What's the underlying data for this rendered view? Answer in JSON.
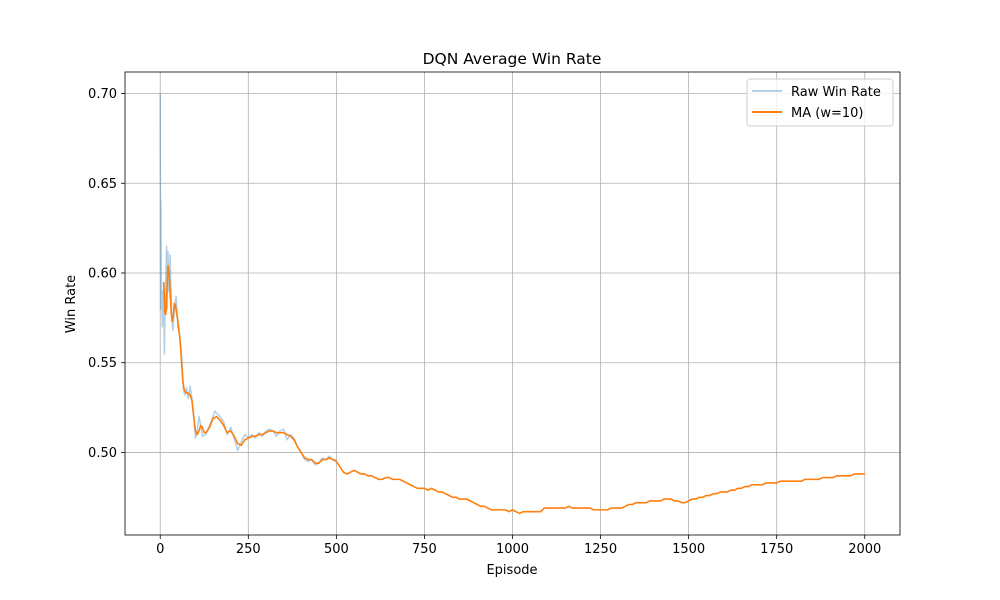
{
  "chart_data": {
    "type": "line",
    "title": "DQN Average Win Rate",
    "xlabel": "Episode",
    "ylabel": "Win Rate",
    "xlim": [
      -100,
      2100
    ],
    "ylim": [
      0.454,
      0.712
    ],
    "xticks": [
      0,
      250,
      500,
      750,
      1000,
      1250,
      1500,
      1750,
      2000
    ],
    "xtick_labels": [
      "0",
      "250",
      "500",
      "750",
      "1000",
      "1250",
      "1500",
      "1750",
      "2000"
    ],
    "yticks": [
      0.5,
      0.55,
      0.6,
      0.65,
      0.7
    ],
    "ytick_labels": [
      "0.50",
      "0.55",
      "0.60",
      "0.65",
      "0.70"
    ],
    "grid": true,
    "legend": {
      "position": "top-right"
    },
    "colors": {
      "raw": "#1f77b4",
      "ma": "#ff7f0e",
      "grid": "#b0b0b0"
    },
    "series": [
      {
        "name": "Raw Win Rate",
        "style": "thin-faded",
        "points": [
          [
            0,
            0.7
          ],
          [
            1,
            0.58
          ],
          [
            2,
            0.64
          ],
          [
            3,
            0.6
          ],
          [
            5,
            0.58
          ],
          [
            6,
            0.57
          ],
          [
            8,
            0.59
          ],
          [
            10,
            0.58
          ],
          [
            12,
            0.555
          ],
          [
            14,
            0.585
          ],
          [
            16,
            0.6
          ],
          [
            18,
            0.615
          ],
          [
            20,
            0.58
          ],
          [
            22,
            0.612
          ],
          [
            25,
            0.59
          ],
          [
            28,
            0.61
          ],
          [
            30,
            0.595
          ],
          [
            33,
            0.575
          ],
          [
            36,
            0.568
          ],
          [
            40,
            0.58
          ],
          [
            45,
            0.587
          ],
          [
            50,
            0.57
          ],
          [
            55,
            0.565
          ],
          [
            58,
            0.56
          ],
          [
            62,
            0.55
          ],
          [
            66,
            0.535
          ],
          [
            70,
            0.532
          ],
          [
            75,
            0.536
          ],
          [
            80,
            0.53
          ],
          [
            85,
            0.537
          ],
          [
            90,
            0.53
          ],
          [
            95,
            0.52
          ],
          [
            100,
            0.508
          ],
          [
            105,
            0.512
          ],
          [
            110,
            0.52
          ],
          [
            115,
            0.515
          ],
          [
            120,
            0.509
          ],
          [
            130,
            0.51
          ],
          [
            140,
            0.515
          ],
          [
            150,
            0.52
          ],
          [
            155,
            0.523
          ],
          [
            160,
            0.522
          ],
          [
            170,
            0.52
          ],
          [
            180,
            0.517
          ],
          [
            190,
            0.51
          ],
          [
            200,
            0.514
          ],
          [
            210,
            0.508
          ],
          [
            220,
            0.501
          ],
          [
            230,
            0.506
          ],
          [
            240,
            0.51
          ],
          [
            250,
            0.508
          ],
          [
            260,
            0.51
          ],
          [
            270,
            0.508
          ],
          [
            280,
            0.511
          ],
          [
            290,
            0.509
          ],
          [
            300,
            0.512
          ],
          [
            310,
            0.513
          ],
          [
            320,
            0.512
          ],
          [
            330,
            0.509
          ],
          [
            340,
            0.512
          ],
          [
            350,
            0.513
          ],
          [
            360,
            0.507
          ],
          [
            370,
            0.51
          ],
          [
            380,
            0.508
          ],
          [
            390,
            0.503
          ],
          [
            400,
            0.5
          ],
          [
            410,
            0.496
          ],
          [
            420,
            0.495
          ],
          [
            430,
            0.496
          ],
          [
            440,
            0.493
          ],
          [
            450,
            0.494
          ],
          [
            460,
            0.497
          ],
          [
            470,
            0.496
          ],
          [
            480,
            0.498
          ],
          [
            490,
            0.496
          ],
          [
            500,
            0.496
          ]
        ]
      },
      {
        "name": "MA (w=10)",
        "style": "solid",
        "points": [
          [
            10,
            0.595
          ],
          [
            13,
            0.578
          ],
          [
            16,
            0.577
          ],
          [
            19,
            0.59
          ],
          [
            22,
            0.604
          ],
          [
            25,
            0.601
          ],
          [
            28,
            0.59
          ],
          [
            31,
            0.578
          ],
          [
            34,
            0.573
          ],
          [
            37,
            0.576
          ],
          [
            40,
            0.583
          ],
          [
            43,
            0.582
          ],
          [
            46,
            0.578
          ],
          [
            49,
            0.575
          ],
          [
            52,
            0.57
          ],
          [
            55,
            0.565
          ],
          [
            58,
            0.558
          ],
          [
            61,
            0.549
          ],
          [
            64,
            0.54
          ],
          [
            67,
            0.536
          ],
          [
            70,
            0.534
          ],
          [
            75,
            0.533
          ],
          [
            80,
            0.533
          ],
          [
            85,
            0.532
          ],
          [
            90,
            0.529
          ],
          [
            95,
            0.52
          ],
          [
            100,
            0.512
          ],
          [
            105,
            0.51
          ],
          [
            110,
            0.512
          ],
          [
            115,
            0.515
          ],
          [
            120,
            0.514
          ],
          [
            125,
            0.511
          ],
          [
            130,
            0.511
          ],
          [
            140,
            0.514
          ],
          [
            150,
            0.519
          ],
          [
            160,
            0.52
          ],
          [
            170,
            0.518
          ],
          [
            180,
            0.515
          ],
          [
            190,
            0.511
          ],
          [
            200,
            0.512
          ],
          [
            210,
            0.509
          ],
          [
            220,
            0.505
          ],
          [
            230,
            0.504
          ],
          [
            240,
            0.507
          ],
          [
            250,
            0.508
          ],
          [
            260,
            0.509
          ],
          [
            270,
            0.509
          ],
          [
            280,
            0.51
          ],
          [
            290,
            0.51
          ],
          [
            300,
            0.511
          ],
          [
            310,
            0.512
          ],
          [
            320,
            0.512
          ],
          [
            330,
            0.511
          ],
          [
            340,
            0.511
          ],
          [
            350,
            0.511
          ],
          [
            360,
            0.51
          ],
          [
            370,
            0.509
          ],
          [
            380,
            0.507
          ],
          [
            390,
            0.503
          ],
          [
            400,
            0.5
          ],
          [
            410,
            0.497
          ],
          [
            420,
            0.496
          ],
          [
            430,
            0.496
          ],
          [
            440,
            0.494
          ],
          [
            450,
            0.494
          ],
          [
            460,
            0.496
          ],
          [
            470,
            0.496
          ],
          [
            480,
            0.497
          ],
          [
            490,
            0.496
          ],
          [
            500,
            0.495
          ],
          [
            510,
            0.492
          ],
          [
            520,
            0.489
          ],
          [
            530,
            0.488
          ],
          [
            540,
            0.489
          ],
          [
            550,
            0.49
          ],
          [
            560,
            0.489
          ],
          [
            570,
            0.488
          ],
          [
            580,
            0.488
          ],
          [
            590,
            0.487
          ],
          [
            600,
            0.487
          ],
          [
            610,
            0.486
          ],
          [
            620,
            0.485
          ],
          [
            630,
            0.485
          ],
          [
            640,
            0.486
          ],
          [
            650,
            0.486
          ],
          [
            660,
            0.485
          ],
          [
            670,
            0.485
          ],
          [
            680,
            0.485
          ],
          [
            690,
            0.484
          ],
          [
            700,
            0.483
          ],
          [
            710,
            0.482
          ],
          [
            720,
            0.481
          ],
          [
            730,
            0.48
          ],
          [
            740,
            0.48
          ],
          [
            750,
            0.48
          ],
          [
            760,
            0.479
          ],
          [
            770,
            0.48
          ],
          [
            780,
            0.479
          ],
          [
            790,
            0.478
          ],
          [
            800,
            0.478
          ],
          [
            810,
            0.477
          ],
          [
            820,
            0.476
          ],
          [
            830,
            0.475
          ],
          [
            840,
            0.475
          ],
          [
            850,
            0.474
          ],
          [
            860,
            0.474
          ],
          [
            870,
            0.474
          ],
          [
            880,
            0.473
          ],
          [
            890,
            0.472
          ],
          [
            900,
            0.471
          ],
          [
            910,
            0.47
          ],
          [
            920,
            0.47
          ],
          [
            930,
            0.469
          ],
          [
            940,
            0.468
          ],
          [
            950,
            0.468
          ],
          [
            960,
            0.468
          ],
          [
            970,
            0.468
          ],
          [
            980,
            0.468
          ],
          [
            990,
            0.467
          ],
          [
            1000,
            0.468
          ],
          [
            1010,
            0.467
          ],
          [
            1020,
            0.466
          ],
          [
            1030,
            0.467
          ],
          [
            1040,
            0.467
          ],
          [
            1050,
            0.467
          ],
          [
            1060,
            0.467
          ],
          [
            1070,
            0.467
          ],
          [
            1080,
            0.467
          ],
          [
            1090,
            0.469
          ],
          [
            1100,
            0.469
          ],
          [
            1110,
            0.469
          ],
          [
            1120,
            0.469
          ],
          [
            1130,
            0.469
          ],
          [
            1140,
            0.469
          ],
          [
            1150,
            0.469
          ],
          [
            1160,
            0.47
          ],
          [
            1170,
            0.469
          ],
          [
            1180,
            0.469
          ],
          [
            1190,
            0.469
          ],
          [
            1200,
            0.469
          ],
          [
            1210,
            0.469
          ],
          [
            1220,
            0.469
          ],
          [
            1230,
            0.468
          ],
          [
            1240,
            0.468
          ],
          [
            1250,
            0.468
          ],
          [
            1260,
            0.468
          ],
          [
            1270,
            0.468
          ],
          [
            1280,
            0.469
          ],
          [
            1290,
            0.469
          ],
          [
            1300,
            0.469
          ],
          [
            1310,
            0.469
          ],
          [
            1320,
            0.47
          ],
          [
            1330,
            0.471
          ],
          [
            1340,
            0.471
          ],
          [
            1350,
            0.472
          ],
          [
            1360,
            0.472
          ],
          [
            1370,
            0.472
          ],
          [
            1380,
            0.472
          ],
          [
            1390,
            0.473
          ],
          [
            1400,
            0.473
          ],
          [
            1410,
            0.473
          ],
          [
            1420,
            0.473
          ],
          [
            1430,
            0.474
          ],
          [
            1440,
            0.474
          ],
          [
            1450,
            0.474
          ],
          [
            1460,
            0.473
          ],
          [
            1470,
            0.473
          ],
          [
            1480,
            0.472
          ],
          [
            1490,
            0.472
          ],
          [
            1500,
            0.473
          ],
          [
            1510,
            0.474
          ],
          [
            1520,
            0.474
          ],
          [
            1530,
            0.475
          ],
          [
            1540,
            0.475
          ],
          [
            1550,
            0.476
          ],
          [
            1560,
            0.476
          ],
          [
            1570,
            0.477
          ],
          [
            1580,
            0.477
          ],
          [
            1590,
            0.478
          ],
          [
            1600,
            0.478
          ],
          [
            1610,
            0.478
          ],
          [
            1620,
            0.479
          ],
          [
            1630,
            0.479
          ],
          [
            1640,
            0.48
          ],
          [
            1650,
            0.48
          ],
          [
            1660,
            0.481
          ],
          [
            1670,
            0.481
          ],
          [
            1680,
            0.482
          ],
          [
            1690,
            0.482
          ],
          [
            1700,
            0.482
          ],
          [
            1710,
            0.482
          ],
          [
            1720,
            0.483
          ],
          [
            1730,
            0.483
          ],
          [
            1740,
            0.483
          ],
          [
            1750,
            0.483
          ],
          [
            1760,
            0.484
          ],
          [
            1770,
            0.484
          ],
          [
            1780,
            0.484
          ],
          [
            1790,
            0.484
          ],
          [
            1800,
            0.484
          ],
          [
            1810,
            0.484
          ],
          [
            1820,
            0.484
          ],
          [
            1830,
            0.485
          ],
          [
            1840,
            0.485
          ],
          [
            1850,
            0.485
          ],
          [
            1860,
            0.485
          ],
          [
            1870,
            0.485
          ],
          [
            1880,
            0.486
          ],
          [
            1890,
            0.486
          ],
          [
            1900,
            0.486
          ],
          [
            1910,
            0.486
          ],
          [
            1920,
            0.487
          ],
          [
            1930,
            0.487
          ],
          [
            1940,
            0.487
          ],
          [
            1950,
            0.487
          ],
          [
            1960,
            0.487
          ],
          [
            1970,
            0.488
          ],
          [
            1980,
            0.488
          ],
          [
            1990,
            0.488
          ],
          [
            2000,
            0.488
          ]
        ]
      }
    ]
  }
}
